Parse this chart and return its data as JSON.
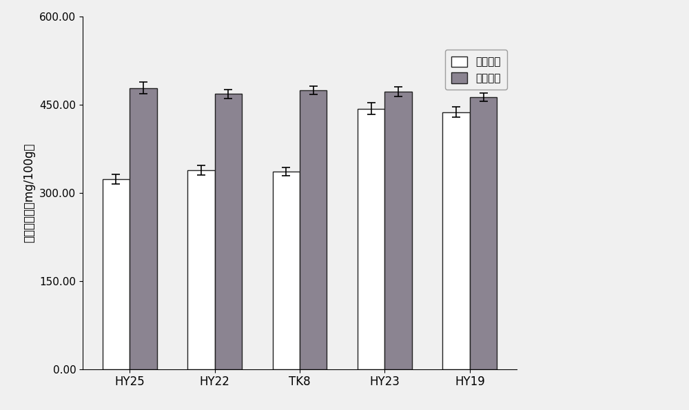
{
  "categories": [
    "HY25",
    "HY22",
    "TK8",
    "HY23",
    "HY19"
  ],
  "normal_water": [
    323,
    338,
    336,
    443,
    437
  ],
  "drought_stress": [
    478,
    468,
    474,
    472,
    463
  ],
  "normal_water_err": [
    8,
    8,
    7,
    10,
    9
  ],
  "drought_stress_err": [
    10,
    8,
    7,
    8,
    7
  ],
  "ylabel": "叶片酚含量（mg/100g）",
  "legend_normal": "正常供水",
  "legend_drought": "干旱胁迫",
  "ylim": [
    0,
    600
  ],
  "yticks": [
    0.0,
    150.0,
    300.0,
    450.0,
    600.0
  ],
  "bar_color_normal": "#ffffff",
  "bar_color_drought": "#8B8491",
  "bar_edgecolor": "#222222",
  "background_color": "#f0f0f0",
  "bar_width": 0.32,
  "figsize": [
    10.0,
    5.95
  ],
  "dpi": 100
}
